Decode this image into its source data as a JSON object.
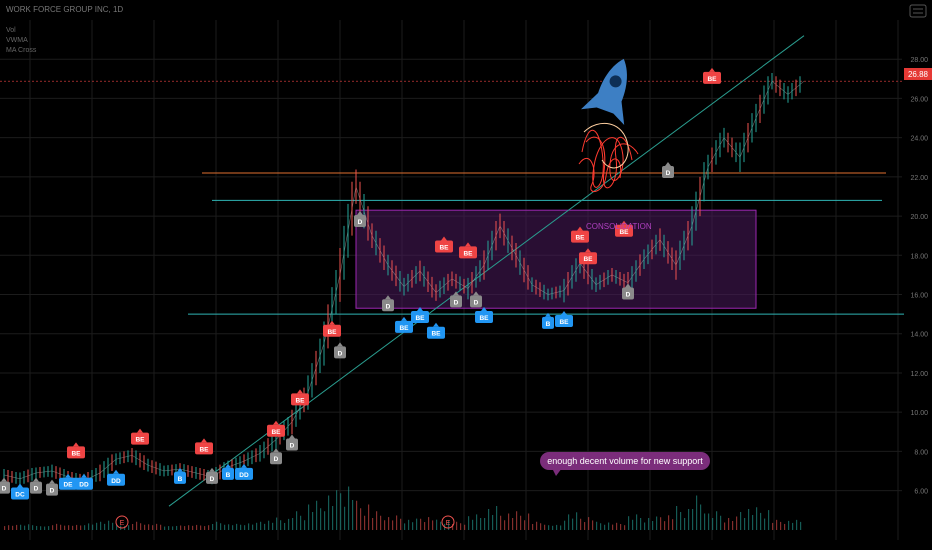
{
  "header": {
    "title": "WORK FORCE GROUP INC, 1D",
    "info_lines": [
      "Vol",
      "VWMA",
      "MA Cross"
    ]
  },
  "price_badge": "26.88",
  "annotations": {
    "consolidation": "CONSOLIDATION",
    "volume_note": "enough decent volume for new support"
  },
  "earnings_markers": [
    "E",
    "E"
  ],
  "colors": {
    "background": "#000000",
    "candle_up": "#26a69a",
    "candle_down": "#ef5350",
    "consolidation_fill": "#4a1a5c",
    "consolidation_stroke": "#9c27b0",
    "consolidation_text": "#b040c0",
    "orange_line": "#e07030",
    "cyan_line": "#2fb4b4",
    "trend_line": "#2a9d8f",
    "badge_red": "#ef4444",
    "badge_blue": "#2196f3",
    "badge_gray": "#8a8a8a",
    "rocket": "#3d7fc4",
    "note_bubble": "#7b2d7b",
    "price_badge_bg": "#e53935"
  },
  "chart_data": {
    "type": "line",
    "ylim": [
      4.5,
      30
    ],
    "y_ticks": [
      6,
      8,
      10,
      12,
      14,
      16,
      18,
      20,
      22,
      24,
      26,
      28
    ],
    "x": [
      0,
      4,
      8,
      12,
      16,
      20,
      24,
      28,
      32,
      36,
      40,
      44,
      48,
      52,
      56,
      60,
      64,
      68,
      72,
      76,
      80,
      84,
      88,
      92,
      96,
      100,
      104,
      108,
      112,
      116,
      120,
      124,
      128,
      132,
      136,
      140,
      144,
      148,
      152,
      156,
      160,
      164,
      168,
      172,
      176,
      180,
      184,
      188,
      192,
      196,
      200
    ],
    "series": [
      {
        "values": [
          6.8,
          6.6,
          6.9,
          7.0,
          6.7,
          6.5,
          6.9,
          7.6,
          7.8,
          7.3,
          7.0,
          7.1,
          6.9,
          6.7,
          7.2,
          7.5,
          7.9,
          8.6,
          9.5,
          11.0,
          13.5,
          17.0,
          21.5,
          19.0,
          17.5,
          16.4,
          17.2,
          16.1,
          16.8,
          16.3,
          17.5,
          19.5,
          18.0,
          16.5,
          16.0,
          16.2,
          17.6,
          16.5,
          17.0,
          16.6,
          17.8,
          18.8,
          17.5,
          19.5,
          22.5,
          24.0,
          23.0,
          25.0,
          26.88,
          26.2,
          26.88
        ]
      }
    ],
    "horizontal_levels": [
      {
        "value": 22.2,
        "role": "orange"
      },
      {
        "value": 20.8,
        "role": "cyan"
      },
      {
        "value": 15.0,
        "role": "cyan"
      },
      {
        "value": 26.88,
        "role": "price"
      }
    ],
    "consolidation_range": {
      "low": 15.3,
      "high": 20.3,
      "x_start": 88,
      "x_end": 188
    },
    "trendline": [
      {
        "x": 0,
        "y": 5.0
      },
      {
        "x": 200,
        "y": 29.2
      }
    ],
    "signals": [
      {
        "x": 0,
        "y": 6.1,
        "label": "D",
        "kind": "gray"
      },
      {
        "x": 4,
        "y": 5.8,
        "label": "DC",
        "kind": "blue"
      },
      {
        "x": 8,
        "y": 6.1,
        "label": "D",
        "kind": "gray"
      },
      {
        "x": 12,
        "y": 6.0,
        "label": "D",
        "kind": "gray"
      },
      {
        "x": 16,
        "y": 6.3,
        "label": "DE",
        "kind": "blue"
      },
      {
        "x": 20,
        "y": 6.3,
        "label": "DD",
        "kind": "blue"
      },
      {
        "x": 18,
        "y": 7.9,
        "label": "BE",
        "kind": "red"
      },
      {
        "x": 28,
        "y": 6.5,
        "label": "DD",
        "kind": "blue"
      },
      {
        "x": 34,
        "y": 8.6,
        "label": "BE",
        "kind": "red"
      },
      {
        "x": 44,
        "y": 6.6,
        "label": "B",
        "kind": "blue"
      },
      {
        "x": 50,
        "y": 8.1,
        "label": "BE",
        "kind": "red"
      },
      {
        "x": 52,
        "y": 6.6,
        "label": "D",
        "kind": "gray"
      },
      {
        "x": 56,
        "y": 6.8,
        "label": "B",
        "kind": "blue"
      },
      {
        "x": 60,
        "y": 6.8,
        "label": "DD",
        "kind": "blue"
      },
      {
        "x": 68,
        "y": 7.6,
        "label": "D",
        "kind": "gray"
      },
      {
        "x": 68,
        "y": 9.0,
        "label": "BE",
        "kind": "red"
      },
      {
        "x": 72,
        "y": 8.3,
        "label": "D",
        "kind": "gray"
      },
      {
        "x": 74,
        "y": 10.6,
        "label": "BE",
        "kind": "red"
      },
      {
        "x": 84,
        "y": 13.0,
        "label": "D",
        "kind": "gray"
      },
      {
        "x": 82,
        "y": 14.1,
        "label": "BE",
        "kind": "red"
      },
      {
        "x": 89,
        "y": 19.7,
        "label": "D",
        "kind": "gray"
      },
      {
        "x": 96,
        "y": 15.4,
        "label": "D",
        "kind": "gray"
      },
      {
        "x": 100,
        "y": 14.3,
        "label": "BE",
        "kind": "blue"
      },
      {
        "x": 104,
        "y": 14.8,
        "label": "BE",
        "kind": "blue"
      },
      {
        "x": 108,
        "y": 14.0,
        "label": "BE",
        "kind": "blue"
      },
      {
        "x": 110,
        "y": 18.4,
        "label": "BE",
        "kind": "red"
      },
      {
        "x": 113,
        "y": 15.6,
        "label": "D",
        "kind": "gray"
      },
      {
        "x": 116,
        "y": 18.1,
        "label": "BE",
        "kind": "red"
      },
      {
        "x": 118,
        "y": 15.6,
        "label": "D",
        "kind": "gray"
      },
      {
        "x": 120,
        "y": 14.8,
        "label": "BE",
        "kind": "blue"
      },
      {
        "x": 136,
        "y": 14.5,
        "label": "B",
        "kind": "blue"
      },
      {
        "x": 140,
        "y": 14.6,
        "label": "BE",
        "kind": "blue"
      },
      {
        "x": 144,
        "y": 18.9,
        "label": "BE",
        "kind": "red"
      },
      {
        "x": 146,
        "y": 17.8,
        "label": "BE",
        "kind": "red"
      },
      {
        "x": 155,
        "y": 19.2,
        "label": "BE",
        "kind": "red"
      },
      {
        "x": 156,
        "y": 16.0,
        "label": "D",
        "kind": "gray"
      },
      {
        "x": 166,
        "y": 22.2,
        "label": "D",
        "kind": "gray"
      },
      {
        "x": 177,
        "y": 27.0,
        "label": "BE",
        "kind": "red"
      }
    ]
  }
}
